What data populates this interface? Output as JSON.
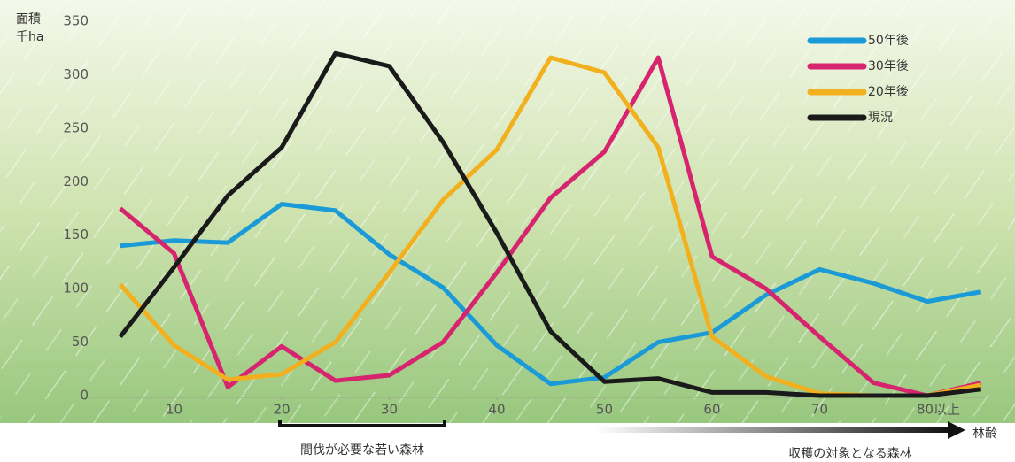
{
  "chart_data": {
    "type": "line",
    "y_label": [
      "面積",
      "千ha"
    ],
    "x_label": "林齢",
    "x": [
      5,
      10,
      15,
      20,
      25,
      30,
      35,
      40,
      45,
      50,
      55,
      60,
      65,
      70,
      75,
      80,
      85
    ],
    "xlim": [
      0,
      87
    ],
    "xticks": [
      10,
      20,
      30,
      40,
      50,
      60,
      70,
      {
        "value": 80,
        "label": "80以上"
      }
    ],
    "ylim": [
      0,
      350
    ],
    "yticks": [
      0,
      50,
      100,
      150,
      200,
      250,
      300,
      350
    ],
    "series": [
      {
        "name": "50年後",
        "color": "#1a9ad6",
        "values": [
          140,
          145,
          143,
          179,
          173,
          132,
          101,
          47,
          11,
          17,
          50,
          59,
          94,
          118,
          105,
          88,
          97
        ]
      },
      {
        "name": "30年後",
        "color": "#d6246e",
        "values": [
          175,
          133,
          8,
          46,
          14,
          19,
          50,
          115,
          185,
          228,
          316,
          130,
          100,
          55,
          12,
          0,
          12
        ]
      },
      {
        "name": "20年後",
        "color": "#f2b01e",
        "values": [
          104,
          47,
          15,
          20,
          50,
          115,
          183,
          230,
          316,
          302,
          232,
          55,
          18,
          2,
          0,
          0,
          10
        ]
      },
      {
        "name": "現況",
        "color": "#1a1a1a",
        "values": [
          55,
          120,
          187,
          232,
          320,
          308,
          237,
          152,
          60,
          13,
          16,
          3,
          3,
          0,
          0,
          0,
          6
        ]
      }
    ],
    "legend": "top-right",
    "annotations": [
      "間伐が必要な若い森林",
      "収穫の対象となる森林"
    ]
  }
}
